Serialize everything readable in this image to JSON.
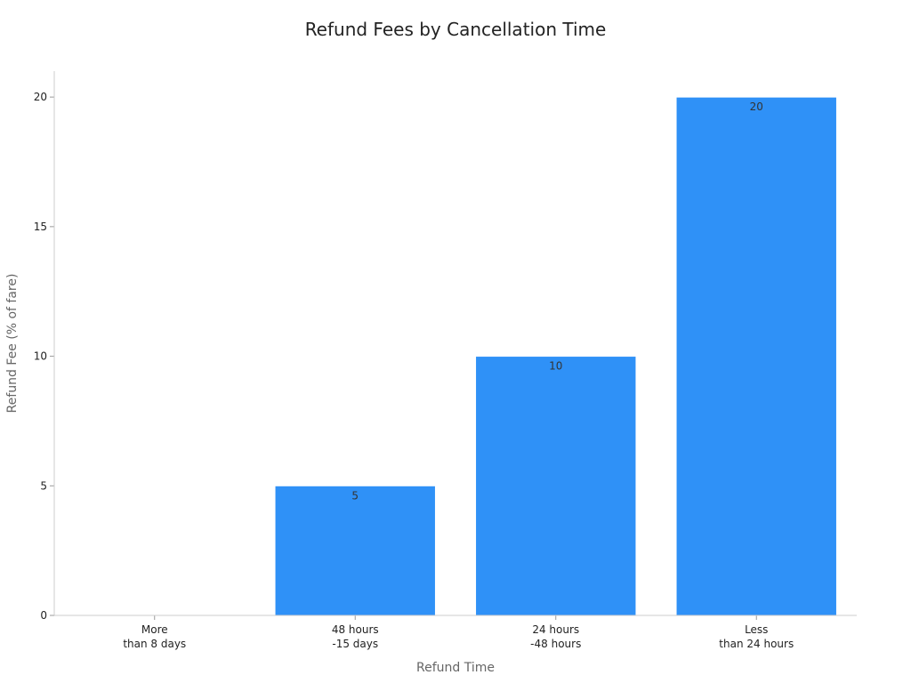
{
  "chart_data": {
    "type": "bar",
    "title": "Refund Fees by Cancellation Time",
    "xlabel": "Refund Time",
    "ylabel": "Refund Fee (% of fare)",
    "categories": [
      [
        "More",
        "than 8 days"
      ],
      [
        "48 hours",
        "-15 days"
      ],
      [
        "24 hours",
        "-48 hours"
      ],
      [
        "Less",
        "than 24 hours"
      ]
    ],
    "values": [
      0,
      5,
      10,
      20
    ],
    "data_labels": [
      "",
      "5",
      "10",
      "20"
    ],
    "ylim": [
      0,
      21
    ],
    "yticks": [
      0,
      5,
      10,
      15,
      20
    ],
    "ytick_labels": [
      "0",
      "5",
      "10",
      "15",
      "20"
    ],
    "grid": false,
    "legend": "none",
    "colors": {
      "bar": "#2f91f7",
      "axis": "#cccccc",
      "tick": "#999999"
    }
  }
}
